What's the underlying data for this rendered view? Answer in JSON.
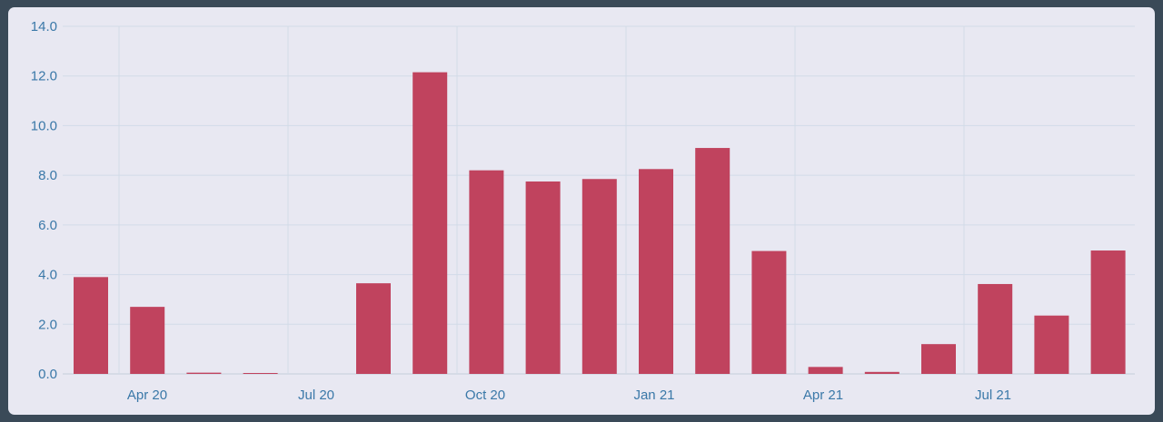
{
  "colors": {
    "bar": "#c0435e",
    "background": "#e8e8f2",
    "frame": "#3a4a58",
    "grid": "#d2dbe8",
    "tick_text": "#3a78a8"
  },
  "chart_data": {
    "type": "bar",
    "title": "",
    "xlabel": "",
    "ylabel": "",
    "grid": true,
    "legend": "none",
    "ylim": [
      0,
      14
    ],
    "y_ticks": [
      "0.0",
      "2.0",
      "4.0",
      "6.0",
      "8.0",
      "10.0",
      "12.0",
      "14.0"
    ],
    "x_tick_labels": [
      "Apr 20",
      "Jul 20",
      "Oct 20",
      "Jan 21",
      "Apr 21",
      "Jul 21"
    ],
    "categories": [
      "2020-03",
      "2020-04",
      "2020-05",
      "2020-06",
      "2020-07",
      "2020-08",
      "2020-09",
      "2020-10",
      "2020-11",
      "2020-12",
      "2021-01",
      "2021-02",
      "2021-03",
      "2021-04",
      "2021-05",
      "2021-06",
      "2021-07",
      "2021-08",
      "2021-09"
    ],
    "values": [
      3.9,
      2.7,
      0.05,
      0.03,
      0,
      3.65,
      12.15,
      8.2,
      7.75,
      7.85,
      8.25,
      9.1,
      4.95,
      0.28,
      0.08,
      1.2,
      3.62,
      2.35,
      4.97
    ]
  }
}
